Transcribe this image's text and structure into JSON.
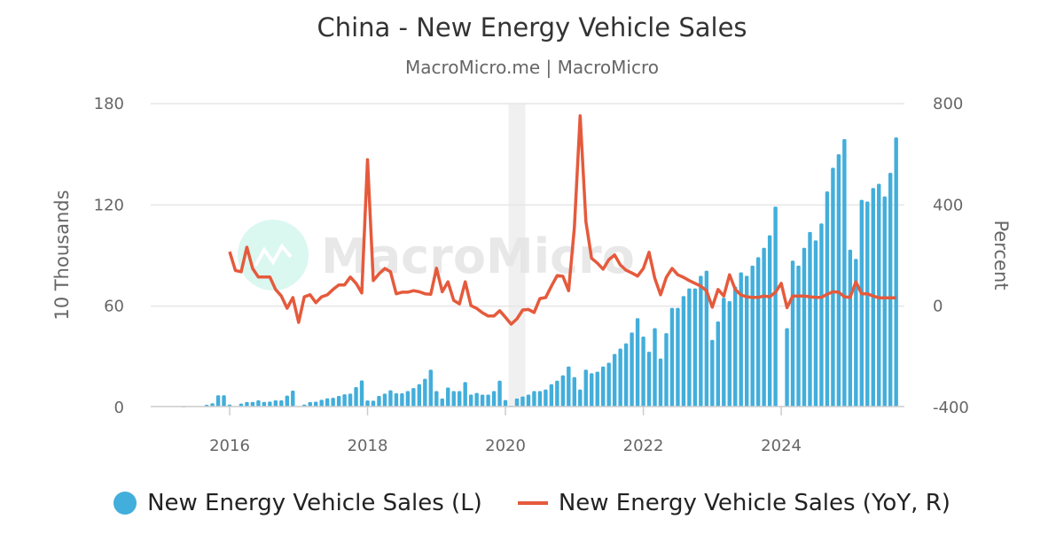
{
  "chart_data": {
    "type": "bar+line",
    "title": "China - New Energy Vehicle Sales",
    "subtitle": "MacroMicro.me | MacroMicro",
    "watermark": "MacroMicro",
    "x_ticks": [
      "2016",
      "2018",
      "2020",
      "2022",
      "2024"
    ],
    "left_axis": {
      "label": "10 Thousands",
      "ticks": [
        "0",
        "60",
        "120",
        "180"
      ],
      "range": [
        0,
        180
      ]
    },
    "right_axis": {
      "label": "Percent",
      "ticks": [
        "-400",
        "0",
        "400",
        "800"
      ],
      "range": [
        -400,
        800
      ]
    },
    "grid": true,
    "legend_position": "bottom",
    "shaded_periods": [
      [
        "2020-02",
        "2020-04"
      ]
    ],
    "colors": {
      "bars": "#42aedb",
      "line": "#e55a3c",
      "shade": "#f0f0f0"
    },
    "series": [
      {
        "name": "New Energy Vehicle Sales (L)",
        "type": "bar",
        "axis": "left",
        "start": "2015-05",
        "values": [
          0.6,
          0.8,
          0.8,
          0.8,
          1.6,
          2.5,
          7.2,
          7.2,
          1.7,
          0.8,
          2.3,
          3.2,
          3.3,
          4.2,
          3.3,
          3.5,
          4.2,
          4.2,
          7.0,
          10.0,
          0.7,
          1.7,
          3.2,
          3.4,
          4.5,
          5.4,
          5.7,
          6.8,
          7.8,
          8.2,
          12.1,
          16.0,
          4.1,
          4.0,
          6.8,
          8.2,
          10.2,
          8.4,
          8.4,
          9.7,
          11.5,
          13.8,
          17.0,
          22.4,
          9.7,
          5.3,
          11.8,
          9.7,
          9.7,
          15.0,
          7.6,
          8.6,
          7.6,
          7.6,
          9.7,
          15.9,
          4.4,
          1.0,
          5.3,
          6.5,
          7.6,
          9.7,
          9.7,
          10.6,
          13.8,
          15.9,
          19.0,
          24.3,
          18.0,
          10.6,
          22.4,
          20.3,
          21.2,
          24.3,
          26.5,
          31.7,
          34.9,
          38.0,
          44.4,
          52.9,
          42,
          33,
          47,
          29,
          44,
          59,
          59,
          66,
          70.5,
          70.5,
          78,
          81,
          40,
          51,
          65,
          63,
          71.6,
          80,
          78,
          84,
          89,
          94.6,
          102,
          119,
          null,
          47,
          87,
          84,
          94.6,
          104,
          99,
          109,
          128,
          142,
          150,
          159,
          93.5,
          88,
          123,
          122,
          130,
          132.5,
          125,
          139,
          160
        ]
      },
      {
        "name": "New Energy Vehicle Sales (YoY, R)",
        "type": "line",
        "axis": "right",
        "start": "2016-01",
        "values": [
          215,
          141,
          136,
          233,
          149,
          115,
          115,
          115,
          66,
          40,
          -8,
          34,
          -64,
          37,
          45,
          14,
          37,
          45,
          66,
          84,
          84,
          115,
          90,
          52,
          579,
          101,
          128,
          149,
          136,
          49,
          55,
          55,
          61,
          57,
          49,
          47,
          150,
          57,
          96,
          23,
          9,
          96,
          2,
          -9,
          -26,
          -39,
          -39,
          -18,
          -44,
          -71,
          -50,
          -15,
          -13,
          -25,
          30,
          34,
          79,
          121,
          118,
          61,
          311,
          752,
          334,
          189,
          170,
          146,
          184,
          202,
          163,
          142,
          131,
          119,
          149,
          213,
          110,
          45,
          114,
          149,
          124,
          114,
          101,
          90,
          79,
          61,
          -4,
          66,
          40,
          124,
          66,
          44,
          37,
          35,
          35,
          40,
          37,
          55,
          90,
          -6,
          40,
          40,
          40,
          37,
          35,
          35,
          47,
          57,
          55,
          37,
          35,
          96,
          49,
          49,
          40,
          33,
          33,
          33,
          33
        ]
      }
    ]
  }
}
